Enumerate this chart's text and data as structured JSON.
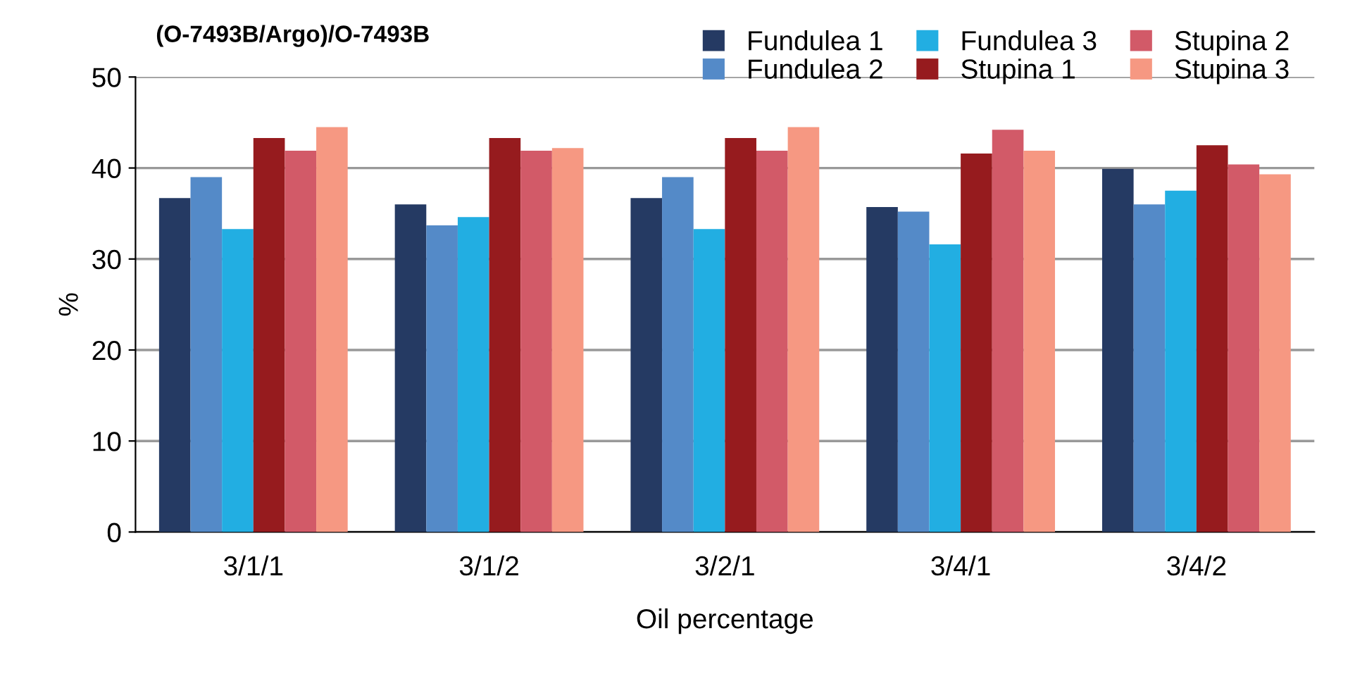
{
  "chart_data": {
    "type": "bar",
    "title": "(O-7493B/Argo)/O-7493B",
    "xlabel": "Oil percentage",
    "ylabel": "%",
    "categories": [
      "3/1/1",
      "3/1/2",
      "3/2/1",
      "3/4/1",
      "3/4/2"
    ],
    "series": [
      {
        "name": "Fundulea 1",
        "color": "#253a63",
        "values": [
          36.7,
          36.0,
          36.7,
          35.7,
          39.9
        ]
      },
      {
        "name": "Fundulea 2",
        "color": "#548ac8",
        "values": [
          39.0,
          33.7,
          39.0,
          35.2,
          36.0
        ]
      },
      {
        "name": "Fundulea 3",
        "color": "#22aee2",
        "values": [
          33.3,
          34.6,
          33.3,
          31.6,
          37.5
        ]
      },
      {
        "name": "Stupina 1",
        "color": "#961b1e",
        "values": [
          43.3,
          43.3,
          43.3,
          41.6,
          42.5
        ]
      },
      {
        "name": "Stupina 2",
        "color": "#d25a68",
        "values": [
          41.9,
          41.9,
          41.9,
          44.2,
          40.4
        ]
      },
      {
        "name": "Stupina 3",
        "color": "#f69882",
        "values": [
          44.5,
          42.2,
          44.5,
          41.9,
          39.3
        ]
      }
    ],
    "ylim": [
      0,
      50
    ],
    "yticks": [
      0,
      10,
      20,
      30,
      40,
      50
    ],
    "grid": "y",
    "legend": "top right"
  }
}
